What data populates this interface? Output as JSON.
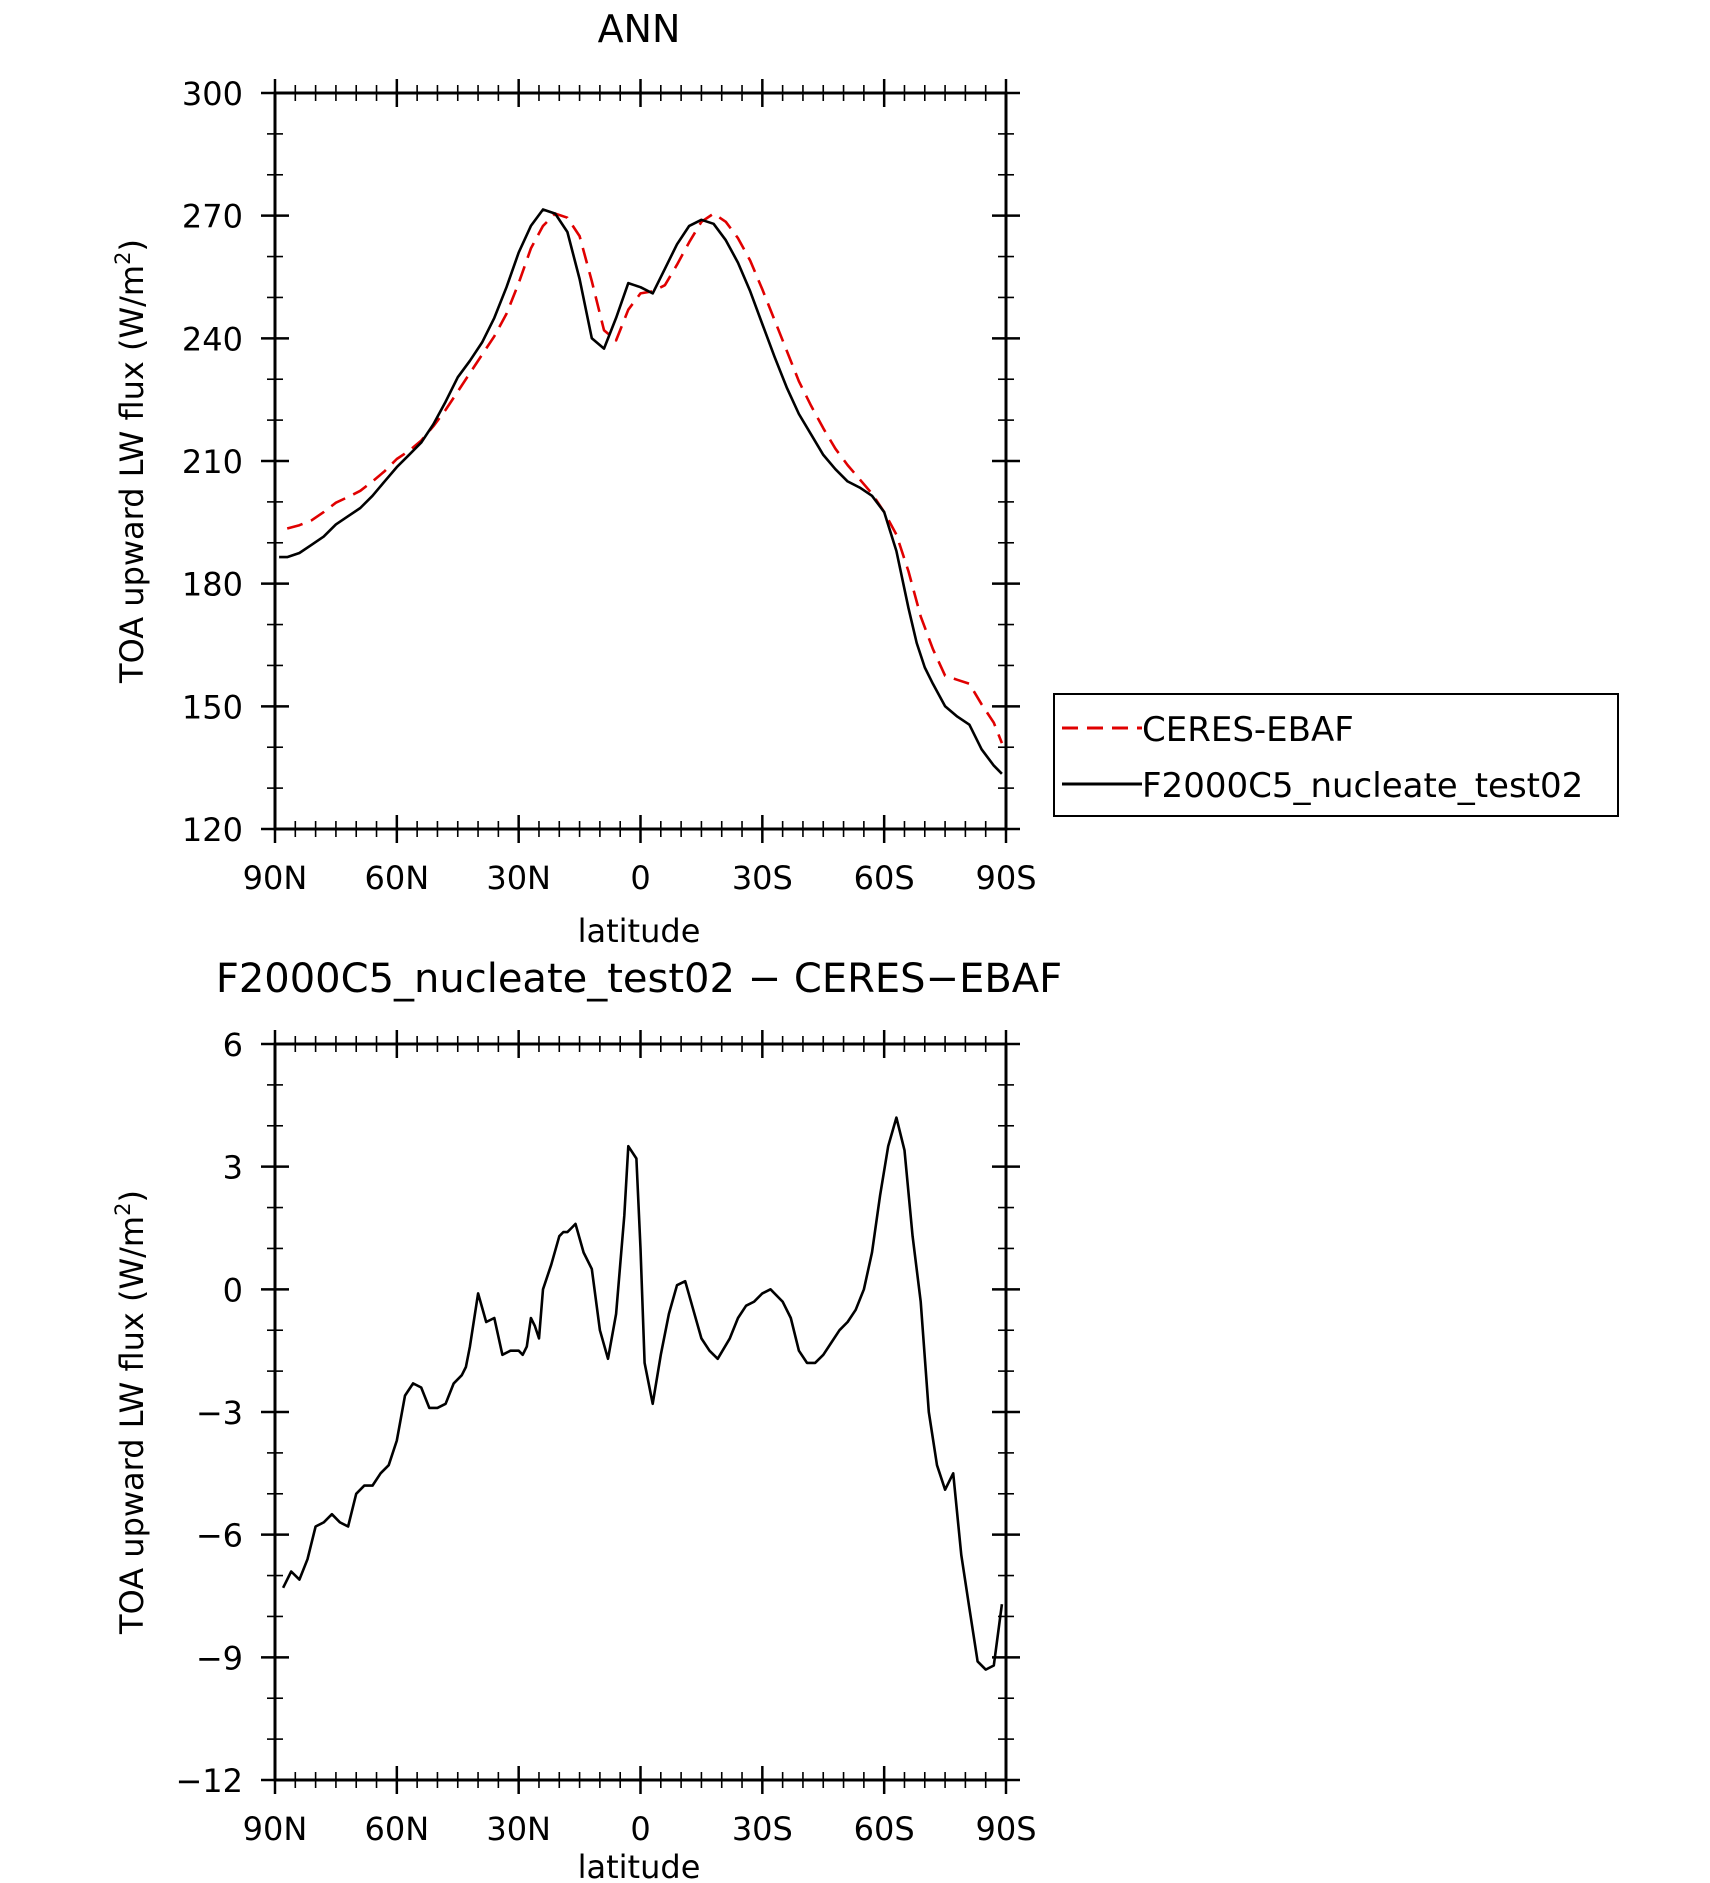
{
  "chart_data": [
    {
      "type": "line",
      "title": "ANN",
      "xlabel": "latitude",
      "ylabel": "TOA upward LW flux (W/m²)",
      "ylabel_main": "TOA upward LW flux (W/m",
      "ylabel_sup": "2",
      "ylabel_close": ")",
      "xlim": [
        -90,
        90
      ],
      "ylim": [
        120,
        300
      ],
      "x_ticks": [
        -90,
        -60,
        -30,
        0,
        30,
        60,
        90
      ],
      "x_tick_labels": [
        "90N",
        "60N",
        "30N",
        "0",
        "30S",
        "60S",
        "90S"
      ],
      "y_ticks": [
        120,
        150,
        180,
        210,
        240,
        270,
        300
      ],
      "y_tick_labels": [
        "120",
        "150",
        "180",
        "210",
        "240",
        "270",
        "300"
      ],
      "legend": "right",
      "series": [
        {
          "name": "CERES-EBAF",
          "color": "#e00000",
          "dash": true,
          "x": [
            -87,
            -84,
            -81,
            -78,
            -75,
            -72,
            -69,
            -66,
            -63,
            -60,
            -57,
            -54,
            -51,
            -48,
            -45,
            -42,
            -39,
            -36,
            -33,
            -30,
            -27,
            -24,
            -21,
            -18,
            -15,
            -12,
            -9,
            -6,
            -3,
            0,
            3,
            6,
            9,
            12,
            15,
            18,
            21,
            24,
            27,
            30,
            33,
            36,
            39,
            42,
            45,
            48,
            51,
            54,
            57,
            60,
            63,
            66,
            69,
            72,
            75,
            78,
            81,
            84,
            87,
            89
          ],
          "values": [
            193.5,
            194.3,
            195.5,
            197.5,
            199.8,
            201.2,
            202.7,
            205.0,
            207.5,
            210.5,
            212.5,
            215.0,
            218.5,
            222.5,
            227.0,
            231.5,
            236.0,
            240.5,
            246.0,
            253.5,
            262.0,
            267.5,
            270.5,
            269.5,
            265.0,
            254.0,
            242.0,
            239.5,
            247.0,
            251.0,
            251.5,
            253.0,
            258.0,
            263.5,
            268.5,
            270.5,
            268.5,
            264.5,
            259.0,
            252.0,
            244.5,
            237.0,
            229.5,
            223.5,
            218.0,
            213.0,
            209.0,
            205.5,
            202.0,
            197.5,
            192.0,
            183.0,
            172.0,
            164.0,
            157.5,
            156.5,
            155.5,
            150.5,
            146.0,
            141.0
          ]
        },
        {
          "name": "F2000C5_nucleate_test02",
          "color": "#000000",
          "dash": false,
          "x": [
            -89,
            -87,
            -84,
            -81,
            -78,
            -75,
            -72,
            -69,
            -66,
            -63,
            -60,
            -57,
            -54,
            -51,
            -48,
            -45,
            -42,
            -39,
            -36,
            -33,
            -30,
            -27,
            -24,
            -21,
            -18,
            -15,
            -12,
            -9,
            -6,
            -3,
            0,
            3,
            6,
            9,
            12,
            15,
            18,
            21,
            24,
            27,
            30,
            33,
            36,
            39,
            42,
            45,
            48,
            51,
            54,
            57,
            60,
            63,
            66,
            68,
            70,
            72,
            75,
            78,
            81,
            84,
            87,
            89
          ],
          "values": [
            186.5,
            186.5,
            187.5,
            189.5,
            191.5,
            194.5,
            196.5,
            198.5,
            201.5,
            205.0,
            208.5,
            211.5,
            214.5,
            219.0,
            224.5,
            230.5,
            234.5,
            239.0,
            245.0,
            252.5,
            261.0,
            267.5,
            271.5,
            270.5,
            266.0,
            254.5,
            240.0,
            237.5,
            245.0,
            253.5,
            252.5,
            251.0,
            257.0,
            263.0,
            267.5,
            269.0,
            268.0,
            264.0,
            258.5,
            251.5,
            243.5,
            235.5,
            228.0,
            221.5,
            216.5,
            211.5,
            208.0,
            205.0,
            203.5,
            201.5,
            197.5,
            188.0,
            174.0,
            165.5,
            159.5,
            155.5,
            150.0,
            147.5,
            145.5,
            139.5,
            135.5,
            133.5
          ]
        }
      ]
    },
    {
      "type": "line",
      "title": "F2000C5_nucleate_test02 − CERES−EBAF",
      "xlabel": "latitude",
      "ylabel": "TOA upward LW flux (W/m²)",
      "ylabel_main": "TOA upward LW flux (W/m",
      "ylabel_sup": "2",
      "ylabel_close": ")",
      "xlim": [
        -90,
        90
      ],
      "ylim": [
        -12,
        6
      ],
      "x_ticks": [
        -90,
        -60,
        -30,
        0,
        30,
        60,
        90
      ],
      "x_tick_labels": [
        "90N",
        "60N",
        "30N",
        "0",
        "30S",
        "60S",
        "90S"
      ],
      "y_ticks": [
        -12,
        -9,
        -6,
        -3,
        0,
        3,
        6
      ],
      "y_tick_labels": [
        "−12",
        "−9",
        "−6",
        "−3",
        "0",
        "3",
        "6"
      ],
      "series": [
        {
          "color": "#000000",
          "dash": false,
          "x": [
            -88,
            -86,
            -84,
            -82,
            -80,
            -78,
            -76,
            -74,
            -72,
            -70,
            -68,
            -66,
            -64,
            -62,
            -60,
            -58,
            -56,
            -54,
            -52,
            -50,
            -48,
            -46,
            -44,
            -43,
            -42,
            -40,
            -38,
            -36,
            -34,
            -32,
            -30,
            -29,
            -28,
            -27,
            -26,
            -25,
            -24,
            -22,
            -20,
            -19,
            -18,
            -17,
            -16,
            -14,
            -12,
            -10,
            -8,
            -6,
            -4,
            -3,
            -1,
            0,
            1,
            3,
            5,
            7,
            9,
            11,
            13,
            15,
            17,
            19,
            22,
            24,
            26,
            28,
            30,
            32,
            35,
            37,
            39,
            41,
            43,
            45,
            47,
            49,
            51,
            53,
            55,
            57,
            59,
            61,
            63,
            65,
            67,
            69,
            71,
            73,
            75,
            77,
            79,
            81,
            83,
            85,
            87,
            89
          ],
          "values": [
            -7.3,
            -6.9,
            -7.1,
            -6.6,
            -5.8,
            -5.7,
            -5.5,
            -5.7,
            -5.8,
            -5.0,
            -4.8,
            -4.8,
            -4.5,
            -4.3,
            -3.7,
            -2.6,
            -2.3,
            -2.4,
            -2.9,
            -2.9,
            -2.8,
            -2.3,
            -2.1,
            -1.9,
            -1.4,
            -0.1,
            -0.8,
            -0.7,
            -1.6,
            -1.5,
            -1.5,
            -1.6,
            -1.4,
            -0.7,
            -0.9,
            -1.2,
            0.0,
            0.6,
            1.3,
            1.4,
            1.4,
            1.5,
            1.6,
            0.9,
            0.5,
            -1.0,
            -1.7,
            -0.6,
            1.8,
            3.5,
            3.2,
            1.0,
            -1.8,
            -2.8,
            -1.6,
            -0.6,
            0.1,
            0.2,
            -0.5,
            -1.2,
            -1.5,
            -1.7,
            -1.2,
            -0.7,
            -0.4,
            -0.3,
            -0.1,
            0.0,
            -0.3,
            -0.7,
            -1.5,
            -1.8,
            -1.8,
            -1.6,
            -1.3,
            -1.0,
            -0.8,
            -0.5,
            0.0,
            0.9,
            2.3,
            3.5,
            4.2,
            3.4,
            1.3,
            -0.3,
            -3.0,
            -4.3,
            -4.9,
            -4.5,
            -6.5,
            -7.8,
            -9.1,
            -9.3,
            -9.2,
            -7.7
          ]
        }
      ]
    }
  ]
}
